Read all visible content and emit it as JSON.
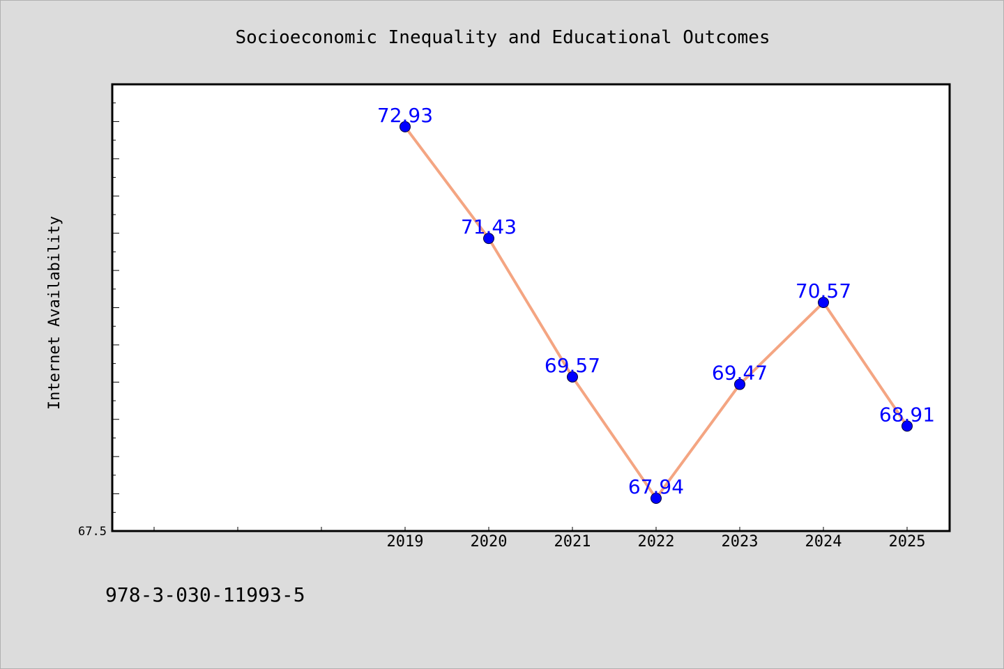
{
  "chart_data": {
    "type": "line",
    "title": "Socioeconomic Inequality and Educational Outcomes",
    "xlabel": "",
    "ylabel": "Internet Availability",
    "categories": [
      "2019",
      "2020",
      "2021",
      "2022",
      "2023",
      "2024",
      "2025"
    ],
    "series": [
      {
        "values": [
          72.93,
          71.43,
          69.57,
          67.94,
          69.47,
          70.57,
          68.91
        ],
        "data_labels": [
          "72.93",
          "71.43",
          "69.57",
          "67.94",
          "69.47",
          "70.57",
          "68.91"
        ]
      }
    ],
    "ylim": [
      67.5,
      73.5
    ],
    "y_tick_labels": [
      "67.5"
    ],
    "grid": false,
    "legend": "none",
    "colors": {
      "line": "#f4a582",
      "marker": "#0000ff",
      "data_label": "#0000ff",
      "background": "#dcdcdc",
      "plot_background": "#ffffff"
    }
  },
  "footer": {
    "isbn": "978-3-030-11993-5"
  }
}
